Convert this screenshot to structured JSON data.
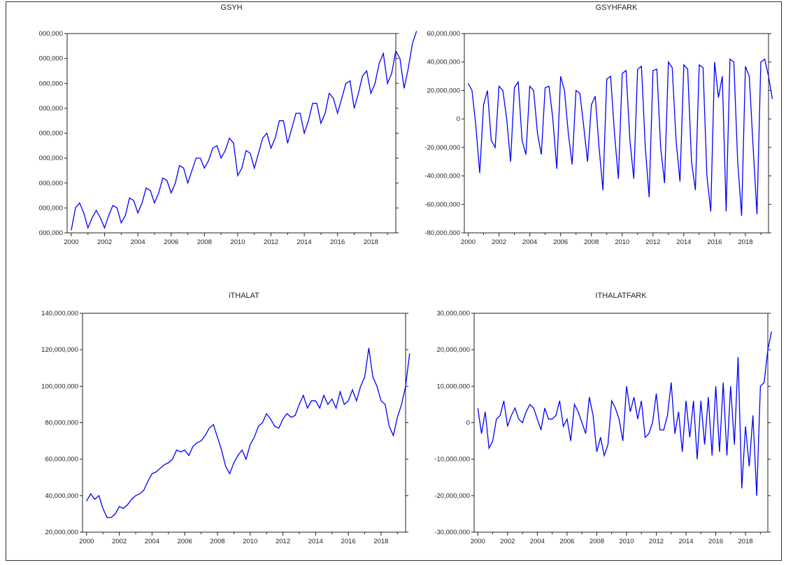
{
  "colors": {
    "series": "#0000ff",
    "axis": "#222222",
    "frame": "#333333"
  },
  "chart_data": [
    {
      "type": "line",
      "title": "GSYH",
      "ylim": [
        0,
        8
      ],
      "yticks": [
        {
          "v": 0,
          "label": "000,000"
        },
        {
          "v": 1,
          "label": "000,000"
        },
        {
          "v": 2,
          "label": "000,000"
        },
        {
          "v": 3,
          "label": "000,000"
        },
        {
          "v": 4,
          "label": "000,000"
        },
        {
          "v": 5,
          "label": "000,000"
        },
        {
          "v": 6,
          "label": "000,000"
        },
        {
          "v": 7,
          "label": "000,000"
        },
        {
          "v": 8,
          "label": "000,000"
        }
      ],
      "xlim": [
        1999.75,
        2019.5
      ],
      "xticks": [
        "2000",
        "2002",
        "2004",
        "2006",
        "2008",
        "2010",
        "2012",
        "2014",
        "2016",
        "2018"
      ],
      "x_start": 2000.0,
      "x_step": 0.25,
      "y": [
        0.1,
        1.0,
        1.2,
        0.8,
        0.2,
        0.6,
        0.9,
        0.6,
        0.2,
        0.7,
        1.1,
        1.0,
        0.4,
        0.7,
        1.4,
        1.3,
        0.8,
        1.2,
        1.8,
        1.7,
        1.2,
        1.6,
        2.2,
        2.1,
        1.6,
        2.0,
        2.7,
        2.6,
        2.0,
        2.5,
        3.0,
        3.0,
        2.6,
        2.9,
        3.4,
        3.5,
        3.0,
        3.3,
        3.8,
        3.6,
        2.3,
        2.6,
        3.3,
        3.2,
        2.6,
        3.2,
        3.8,
        4.0,
        3.4,
        3.8,
        4.5,
        4.5,
        3.6,
        4.2,
        4.8,
        4.8,
        4.0,
        4.5,
        5.2,
        5.2,
        4.4,
        4.8,
        5.6,
        5.4,
        4.8,
        5.4,
        6.0,
        6.1,
        5.0,
        5.6,
        6.3,
        6.5,
        5.6,
        6.0,
        6.8,
        7.2,
        6.0,
        6.4,
        7.3,
        7.0,
        5.8,
        6.6,
        7.6,
        8.1
      ]
    },
    {
      "type": "line",
      "title": "GSYHFARK",
      "ylim": [
        -80000000,
        60000000
      ],
      "yticks": [
        {
          "v": -80000000,
          "label": "-80,000,000"
        },
        {
          "v": -60000000,
          "label": "-60,000,000"
        },
        {
          "v": -40000000,
          "label": "-40,000,000"
        },
        {
          "v": -20000000,
          "label": "-20,000,000"
        },
        {
          "v": 0,
          "label": "0"
        },
        {
          "v": 20000000,
          "label": "20,000,000"
        },
        {
          "v": 40000000,
          "label": "40,000,000"
        },
        {
          "v": 60000000,
          "label": "60,000,000"
        }
      ],
      "xlim": [
        1999.75,
        2019.5
      ],
      "xticks": [
        "2000",
        "2002",
        "2004",
        "2006",
        "2008",
        "2010",
        "2012",
        "2014",
        "2016",
        "2018"
      ],
      "x_start": 2000.0,
      "x_step": 0.25,
      "y": [
        25000000,
        20000000,
        -5000000,
        -38000000,
        10000000,
        20000000,
        -15000000,
        -20000000,
        23000000,
        20000000,
        0,
        -30000000,
        22000000,
        26000000,
        -15000000,
        -25000000,
        23000000,
        20000000,
        -10000000,
        -25000000,
        22000000,
        23000000,
        0,
        -35000000,
        30000000,
        20000000,
        -10000000,
        -32000000,
        20000000,
        18000000,
        -5000000,
        -30000000,
        10000000,
        16000000,
        -20000000,
        -50000000,
        28000000,
        30000000,
        -10000000,
        -42000000,
        32000000,
        34000000,
        -15000000,
        -42000000,
        35000000,
        37000000,
        -20000000,
        -55000000,
        34000000,
        35000000,
        -20000000,
        -45000000,
        40000000,
        36000000,
        -15000000,
        -44000000,
        38000000,
        35000000,
        -30000000,
        -50000000,
        38000000,
        36000000,
        -40000000,
        -65000000,
        40000000,
        15000000,
        30000000,
        -65000000,
        42000000,
        40000000,
        -30000000,
        -68000000,
        37000000,
        30000000,
        -20000000,
        -67000000,
        40000000,
        42000000,
        30000000,
        14000000
      ]
    },
    {
      "type": "line",
      "title": "iTHALAT",
      "ylim": [
        20000000,
        140000000
      ],
      "yticks": [
        {
          "v": 20000000,
          "label": "20,000,000"
        },
        {
          "v": 40000000,
          "label": "40,000,000"
        },
        {
          "v": 60000000,
          "label": "60,000,000"
        },
        {
          "v": 80000000,
          "label": "80,000,000"
        },
        {
          "v": 100000000,
          "label": "100,000,000"
        },
        {
          "v": 120000000,
          "label": "120,000,000"
        },
        {
          "v": 140000000,
          "label": "140,000,000"
        }
      ],
      "xlim": [
        1999.75,
        2019.5
      ],
      "xticks": [
        "2000",
        "2002",
        "2004",
        "2006",
        "2008",
        "2010",
        "2012",
        "2014",
        "2016",
        "2018"
      ],
      "x_start": 2000.0,
      "x_step": 0.25,
      "y": [
        37000000,
        41000000,
        38000000,
        40000000,
        33000000,
        28000000,
        28000000,
        30000000,
        34000000,
        33000000,
        35000000,
        38000000,
        40000000,
        41000000,
        43000000,
        48000000,
        52000000,
        53000000,
        55000000,
        57000000,
        58000000,
        60000000,
        65000000,
        64000000,
        65000000,
        62000000,
        67000000,
        69000000,
        70000000,
        73000000,
        77000000,
        79000000,
        72000000,
        65000000,
        56000000,
        52000000,
        58000000,
        62000000,
        65000000,
        60000000,
        68000000,
        72000000,
        78000000,
        80000000,
        85000000,
        82000000,
        78000000,
        77000000,
        82000000,
        85000000,
        83000000,
        84000000,
        90000000,
        95000000,
        88000000,
        92000000,
        92000000,
        88000000,
        95000000,
        90000000,
        93000000,
        88000000,
        97000000,
        90000000,
        92000000,
        98000000,
        92000000,
        100000000,
        105000000,
        121000000,
        105000000,
        100000000,
        92000000,
        90000000,
        78000000,
        73000000,
        83000000,
        90000000,
        100000000,
        118000000
      ]
    },
    {
      "type": "line",
      "title": "ITHALATFARK",
      "ylim": [
        -30000000,
        30000000
      ],
      "yticks": [
        {
          "v": -30000000,
          "label": "-30,000,000"
        },
        {
          "v": -20000000,
          "label": "-20,000,000"
        },
        {
          "v": -10000000,
          "label": "-10,000,000"
        },
        {
          "v": 0,
          "label": "0"
        },
        {
          "v": 10000000,
          "label": "10,000,000"
        },
        {
          "v": 20000000,
          "label": "20,000,000"
        },
        {
          "v": 30000000,
          "label": "30,000,000"
        }
      ],
      "xlim": [
        1999.75,
        2019.5
      ],
      "xticks": [
        "2000",
        "2002",
        "2004",
        "2006",
        "2008",
        "2010",
        "2012",
        "2014",
        "2016",
        "2018"
      ],
      "x_start": 2000.0,
      "x_step": 0.25,
      "y": [
        4000000,
        -3000000,
        3000000,
        -7000000,
        -5000000,
        1000000,
        2000000,
        6000000,
        -1000000,
        2000000,
        4000000,
        1000000,
        0,
        3000000,
        5000000,
        4000000,
        1000000,
        -2000000,
        4000000,
        1000000,
        1000000,
        2000000,
        6000000,
        -1000000,
        1000000,
        -5000000,
        5000000,
        3000000,
        0,
        -3000000,
        7000000,
        2000000,
        -8000000,
        -4000000,
        -9000000,
        -6000000,
        6000000,
        4000000,
        1000000,
        -5000000,
        10000000,
        3000000,
        7000000,
        1000000,
        6000000,
        -4000000,
        -3000000,
        0,
        8000000,
        -2000000,
        -2000000,
        2000000,
        11000000,
        -3000000,
        3000000,
        -8000000,
        6000000,
        -4000000,
        6000000,
        -10000000,
        6000000,
        -6000000,
        7000000,
        -9000000,
        10000000,
        -8000000,
        11000000,
        -9000000,
        10000000,
        -6000000,
        18000000,
        -18000000,
        -1000000,
        -12000000,
        2000000,
        -20000000,
        10000000,
        11000000,
        20000000,
        25000000
      ]
    }
  ]
}
